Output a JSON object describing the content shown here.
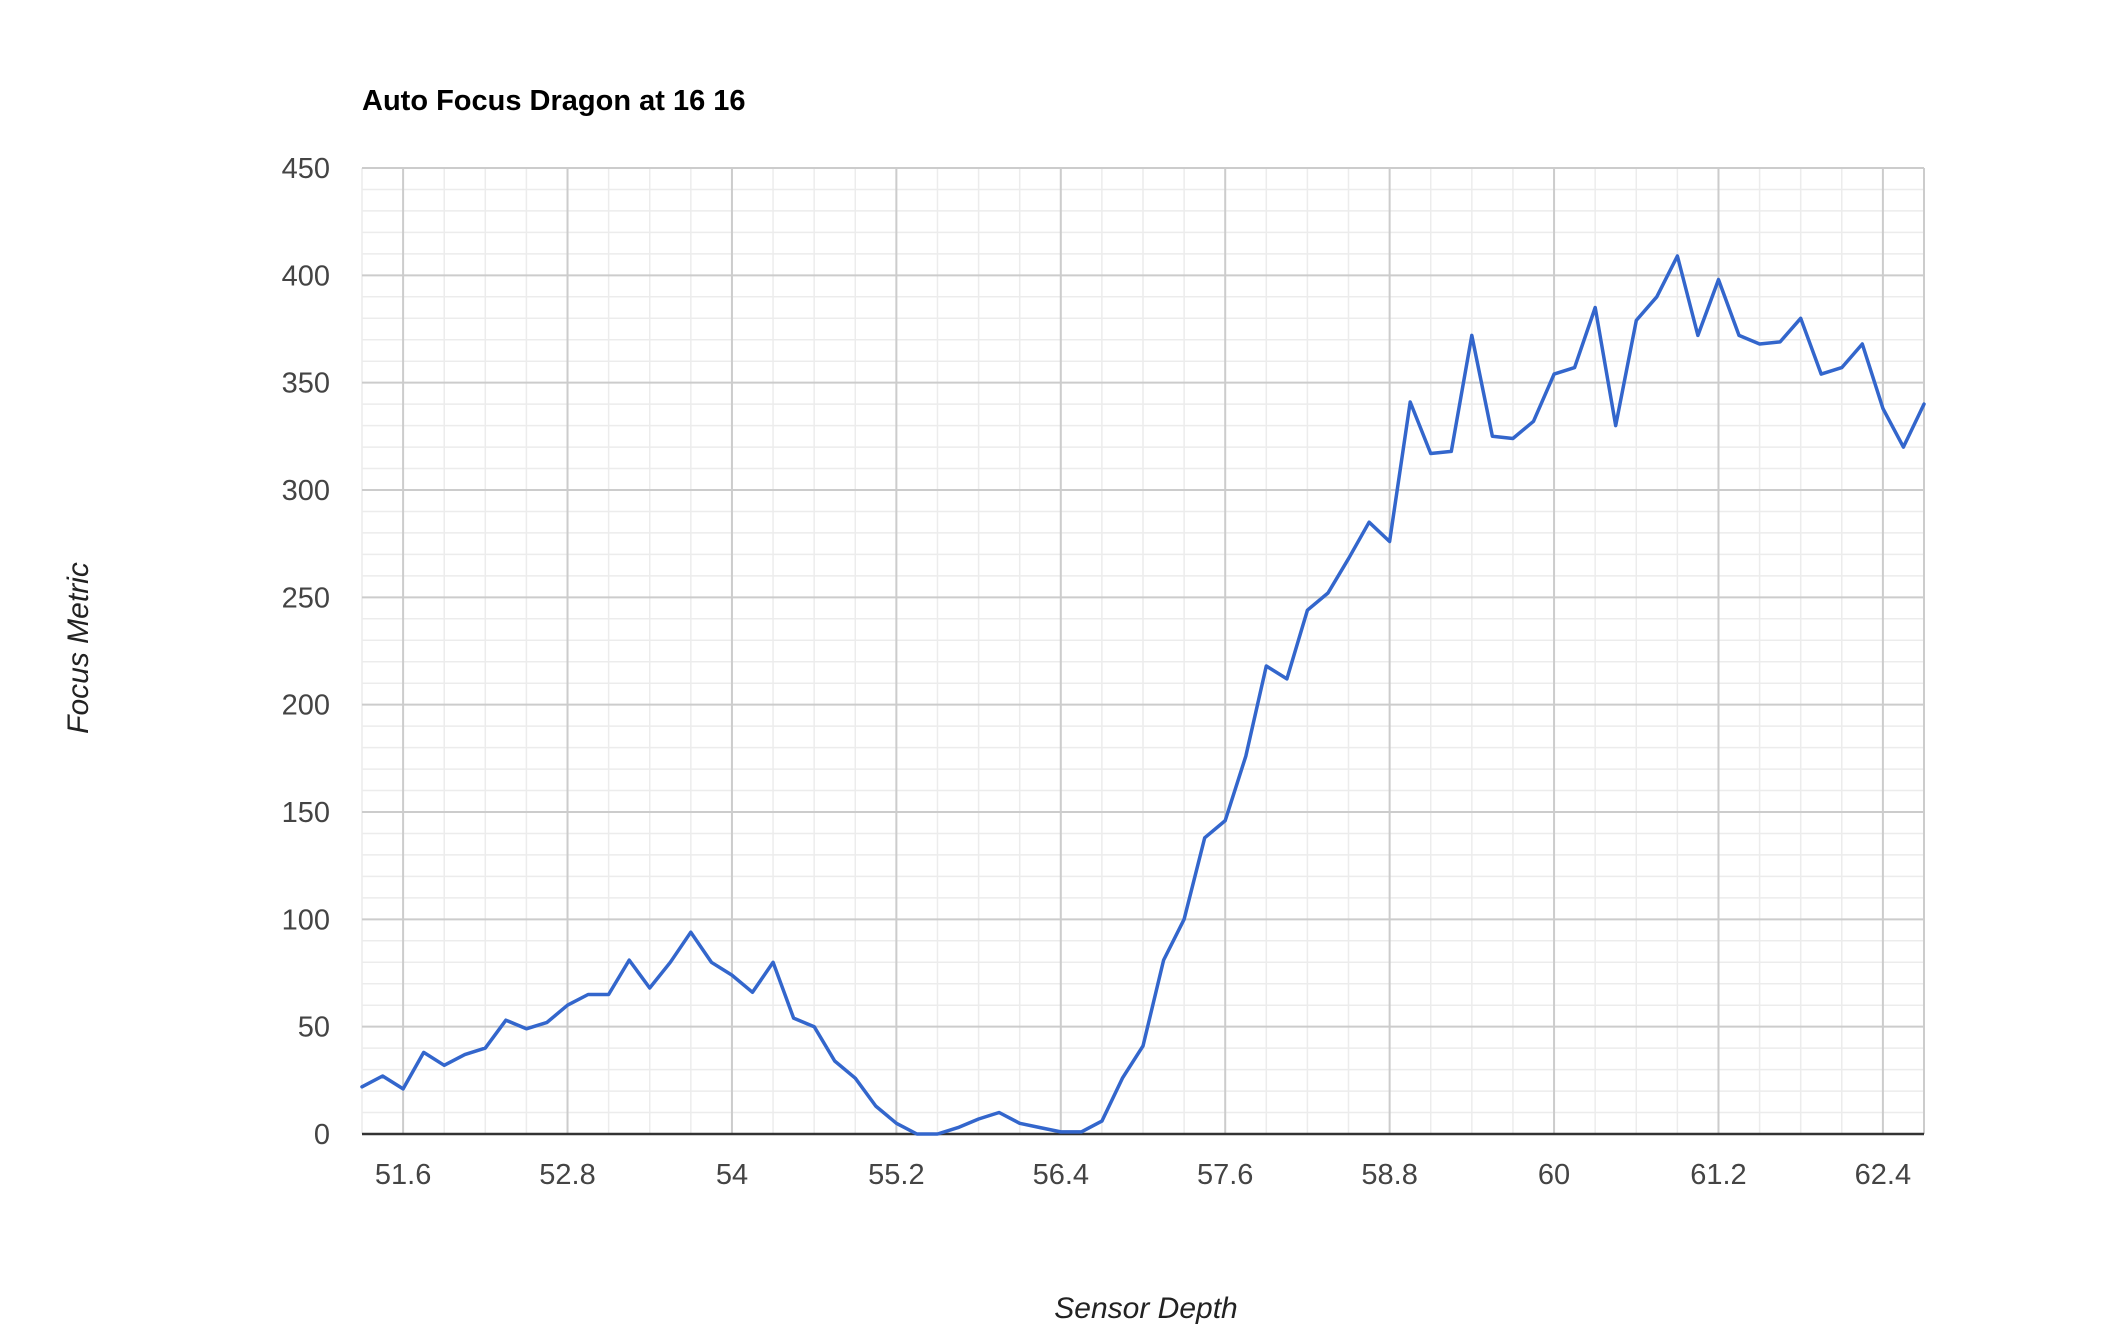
{
  "chart_data": {
    "type": "line",
    "title": "Auto Focus Dragon at 16 16",
    "xlabel": "Sensor Depth",
    "ylabel": "Focus Metric",
    "xlim": [
      51.3,
      62.7
    ],
    "ylim": [
      0,
      450
    ],
    "x_ticks": [
      51.6,
      52.8,
      54,
      55.2,
      56.4,
      57.6,
      58.8,
      60,
      61.2,
      62.4
    ],
    "x_tick_labels": [
      "51.6",
      "52.8",
      "54",
      "55.2",
      "56.4",
      "57.6",
      "58.8",
      "60",
      "61.2",
      "62.4"
    ],
    "y_ticks": [
      0,
      50,
      100,
      150,
      200,
      250,
      300,
      350,
      400,
      450
    ],
    "y_tick_labels": [
      "0",
      "50",
      "100",
      "150",
      "200",
      "250",
      "300",
      "350",
      "400",
      "450"
    ],
    "grid": true,
    "legend": "none",
    "series": [
      {
        "color": "#3366cc",
        "x": [
          51.3,
          51.45,
          51.6,
          51.75,
          51.9,
          52.05,
          52.2,
          52.35,
          52.5,
          52.65,
          52.8,
          52.95,
          53.1,
          53.25,
          53.4,
          53.55,
          53.7,
          53.85,
          54.0,
          54.15,
          54.3,
          54.45,
          54.6,
          54.75,
          54.9,
          55.05,
          55.2,
          55.35,
          55.5,
          55.65,
          55.8,
          55.95,
          56.1,
          56.25,
          56.4,
          56.55,
          56.7,
          56.85,
          57.0,
          57.15,
          57.3,
          57.45,
          57.6,
          57.75,
          57.9,
          58.05,
          58.2,
          58.35,
          58.5,
          58.65,
          58.8,
          58.95,
          59.1,
          59.25,
          59.4,
          59.55,
          59.7,
          59.85,
          60.0,
          60.15,
          60.3,
          60.45,
          60.6,
          60.75,
          60.9,
          61.05,
          61.2,
          61.35,
          61.5,
          61.65,
          61.8,
          61.95,
          62.1,
          62.25,
          62.4,
          62.55,
          62.7
        ],
        "values": [
          22,
          27,
          21,
          38,
          32,
          37,
          40,
          53,
          49,
          52,
          60,
          65,
          65,
          81,
          68,
          80,
          94,
          80,
          74,
          66,
          80,
          54,
          50,
          34,
          26,
          13,
          5,
          0,
          0,
          3,
          7,
          10,
          5,
          3,
          1,
          1,
          6,
          26,
          41,
          81,
          100,
          138,
          146,
          176,
          218,
          212,
          244,
          252,
          268,
          285,
          276,
          341,
          317,
          318,
          372,
          325,
          324,
          332,
          354,
          357,
          385,
          330,
          379,
          390,
          409,
          372,
          398,
          372,
          368,
          369,
          380,
          354,
          357,
          368,
          338,
          320,
          340
        ]
      }
    ]
  }
}
